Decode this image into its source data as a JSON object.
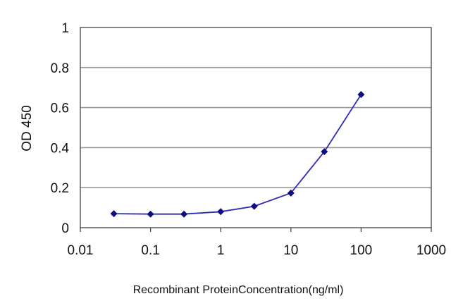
{
  "chart_data": {
    "type": "line",
    "title": "",
    "xlabel": "Recombinant ProteinConcentration(ng/ml)",
    "ylabel": "OD 450",
    "x_scale": "log",
    "xlim": [
      0.01,
      1000
    ],
    "ylim": [
      0,
      1
    ],
    "x_ticks": [
      0.01,
      0.1,
      1,
      10,
      100,
      1000
    ],
    "x_tick_labels": [
      "0.01",
      "0.1",
      "1",
      "10",
      "100",
      "1000"
    ],
    "y_ticks": [
      0,
      0.2,
      0.4,
      0.6,
      0.8,
      1
    ],
    "y_tick_labels": [
      "0",
      "0.2",
      "0.4",
      "0.6",
      "0.8",
      "1"
    ],
    "grid": "horizontal",
    "legend": "none",
    "series": [
      {
        "x": [
          0.03,
          0.1,
          0.3,
          1,
          3,
          10,
          30,
          100
        ],
        "y": [
          0.07,
          0.068,
          0.068,
          0.08,
          0.107,
          0.173,
          0.38,
          0.665
        ],
        "color": "#2b2bb8"
      }
    ],
    "colors": {
      "line": "#2b2bb8",
      "marker": "#0d0d80",
      "grid": "#999999",
      "axis": "#444444"
    }
  }
}
